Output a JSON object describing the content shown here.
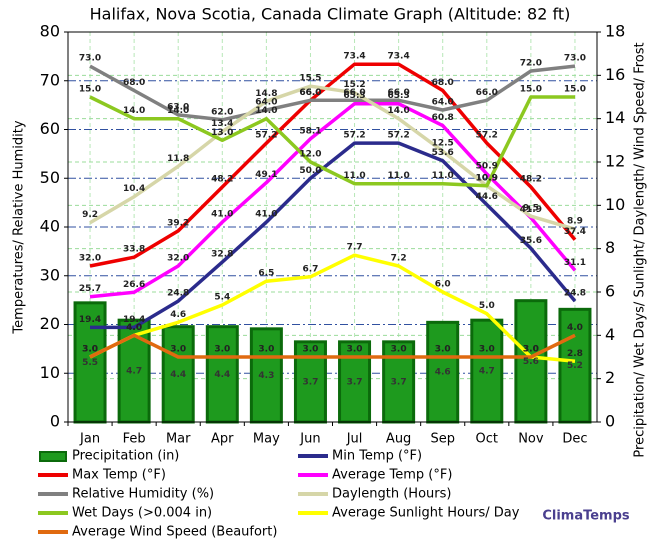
{
  "chart_data": {
    "type": "line",
    "title": "Halifax, Nova Scotia, Canada Climate Graph (Altitude: 82 ft)",
    "y_label": "Temperatures/ Relative Humidity",
    "y2_label": "Precipitation/ Wet Days/ Sunlight/ Daylength/ Wind Speed/ Frost",
    "brand": "ClimaTemps",
    "categories": [
      "Jan",
      "Feb",
      "Mar",
      "Apr",
      "May",
      "Jun",
      "Jul",
      "Aug",
      "Sep",
      "Oct",
      "Nov",
      "Dec"
    ],
    "ylim": [
      0,
      80
    ],
    "yticks": [
      0,
      10,
      20,
      30,
      40,
      50,
      60,
      70,
      80
    ],
    "y2lim": [
      0,
      18
    ],
    "y2ticks": [
      0,
      2,
      4,
      6,
      8,
      10,
      12,
      14,
      16,
      18
    ],
    "grid": true,
    "series": [
      {
        "name": "Precipitation (in)",
        "type": "bar",
        "axis": "y2",
        "color": "#1e9a1e",
        "values": [
          5.5,
          4.7,
          4.4,
          4.4,
          4.3,
          3.7,
          3.7,
          3.7,
          4.6,
          4.7,
          5.6,
          5.2
        ],
        "value_labels": [
          "5.5",
          "4.7",
          "4.4",
          "4.4",
          "4.3",
          "3.7",
          "3.7",
          "3.7",
          "4.6",
          "4.7",
          "5.6",
          "5.2"
        ]
      },
      {
        "name": "Min Temp (°F)",
        "type": "line",
        "axis": "y",
        "color": "#2b2b8c",
        "values": [
          19.4,
          19.4,
          24.8,
          32.8,
          41.0,
          50.0,
          57.2,
          57.2,
          53.6,
          44.6,
          35.6,
          24.8
        ],
        "value_labels": [
          "19.4",
          "19.4",
          "24.8",
          "32.8",
          "41.0",
          "50.0",
          "57.2",
          "57.2",
          "53.6",
          "44.6",
          "35.6",
          "24.8"
        ]
      },
      {
        "name": "Max Temp (°F)",
        "type": "line",
        "axis": "y",
        "color": "#ee0000",
        "values": [
          32.0,
          33.8,
          39.2,
          48.2,
          57.2,
          66.0,
          73.4,
          73.4,
          68.0,
          57.2,
          48.2,
          37.4
        ],
        "value_labels": [
          "32.0",
          "33.8",
          "39.2",
          "48.2",
          "57.2",
          "66.0",
          "73.4",
          "73.4",
          "68.0",
          "57.2",
          "48.2",
          "37.4"
        ]
      },
      {
        "name": "Average Temp (°F)",
        "type": "line",
        "axis": "y",
        "color": "#ff00ff",
        "values": [
          25.7,
          26.6,
          32.0,
          41.0,
          49.1,
          58.1,
          65.3,
          65.3,
          60.8,
          50.9,
          41.9,
          31.1
        ],
        "value_labels": [
          "25.7",
          "26.6",
          "32.0",
          "41.0",
          "49.1",
          "58.1",
          "65.3",
          "65.3",
          "60.8",
          "50.9",
          "41.9",
          "31.1"
        ]
      },
      {
        "name": "Relative Humidity (%)",
        "type": "line",
        "axis": "y",
        "color": "#808080",
        "values": [
          73.0,
          68.0,
          63.0,
          62.0,
          64.0,
          66.0,
          66.0,
          66.0,
          64.0,
          66.0,
          72.0,
          73.0
        ],
        "value_labels": [
          "73.0",
          "68.0",
          "63.0",
          "62.0",
          "64.0",
          "66.0",
          "66.0",
          "66.0",
          "64.0",
          "66.0",
          "72.0",
          "73.0"
        ]
      },
      {
        "name": "Daylength (Hours)",
        "type": "line",
        "axis": "y2",
        "color": "#d6d6a8",
        "values": [
          9.2,
          10.4,
          11.8,
          13.4,
          14.8,
          15.5,
          15.2,
          14.0,
          12.5,
          10.9,
          9.5,
          8.9
        ],
        "value_labels": [
          "9.2",
          "10.4",
          "11.8",
          "13.4",
          "14.8",
          "15.5",
          "15.2",
          "14.0",
          "12.5",
          "10.9",
          "9.5",
          "8.9"
        ]
      },
      {
        "name": "Wet Days (>0.004 in)",
        "type": "line",
        "axis": "y2",
        "color": "#8cc820",
        "values": [
          15.0,
          14.0,
          14.0,
          13.0,
          14.0,
          12.0,
          11.0,
          11.0,
          11.0,
          10.9,
          15.0,
          15.0
        ],
        "value_labels": [
          "15.0",
          "14.0",
          "14.0",
          "13.0",
          "14.0",
          "12.0",
          "11.0",
          "11.0",
          "11.0",
          "10.9",
          "15.0",
          "15.0"
        ]
      },
      {
        "name": "Average Sunlight Hours/ Day",
        "type": "line",
        "axis": "y2",
        "color": "#ffff00",
        "values": [
          3.0,
          4.0,
          4.6,
          5.4,
          6.5,
          6.7,
          7.7,
          7.2,
          6.0,
          5.0,
          3.0,
          2.8
        ],
        "value_labels": [
          "3.0",
          "4.0",
          "4.6",
          "5.4",
          "6.5",
          "6.7",
          "7.7",
          "7.2",
          "6.0",
          "5.0",
          "3.0",
          "2.8"
        ]
      },
      {
        "name": "Average Wind Speed (Beaufort)",
        "type": "line",
        "axis": "y2",
        "color": "#e06a10",
        "values": [
          3.0,
          4.0,
          3.0,
          3.0,
          3.0,
          3.0,
          3.0,
          3.0,
          3.0,
          3.0,
          3.0,
          4.0
        ],
        "value_labels": [
          "3.0",
          "4.0",
          "3.0",
          "3.0",
          "3.0",
          "3.0",
          "3.0",
          "3.0",
          "3.0",
          "3.0",
          "3.0",
          "4.0"
        ]
      }
    ]
  }
}
